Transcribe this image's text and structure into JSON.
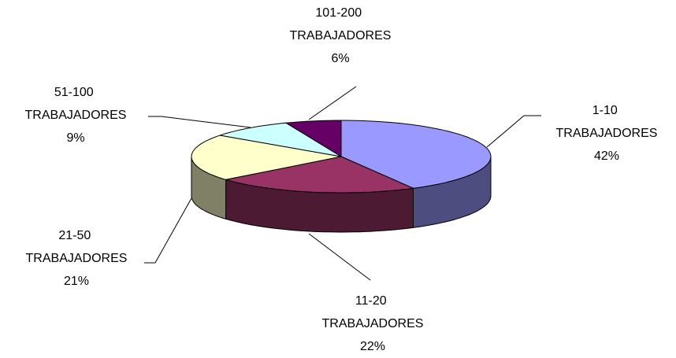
{
  "chart_data": {
    "type": "pie3d",
    "categories": [
      "1-10 TRABAJADORES",
      "11-20 TRABAJADORES",
      "21-50 TRABAJADORES",
      "51-100 TRABAJADORES",
      "101-200 TRABAJADORES"
    ],
    "values": [
      42,
      22,
      21,
      9,
      6
    ],
    "value_labels": [
      "42%",
      "22%",
      "21%",
      "9%",
      "6%"
    ],
    "colors": [
      "#9999ff",
      "#993366",
      "#ffffcc",
      "#ccffff",
      "#660066"
    ]
  }
}
